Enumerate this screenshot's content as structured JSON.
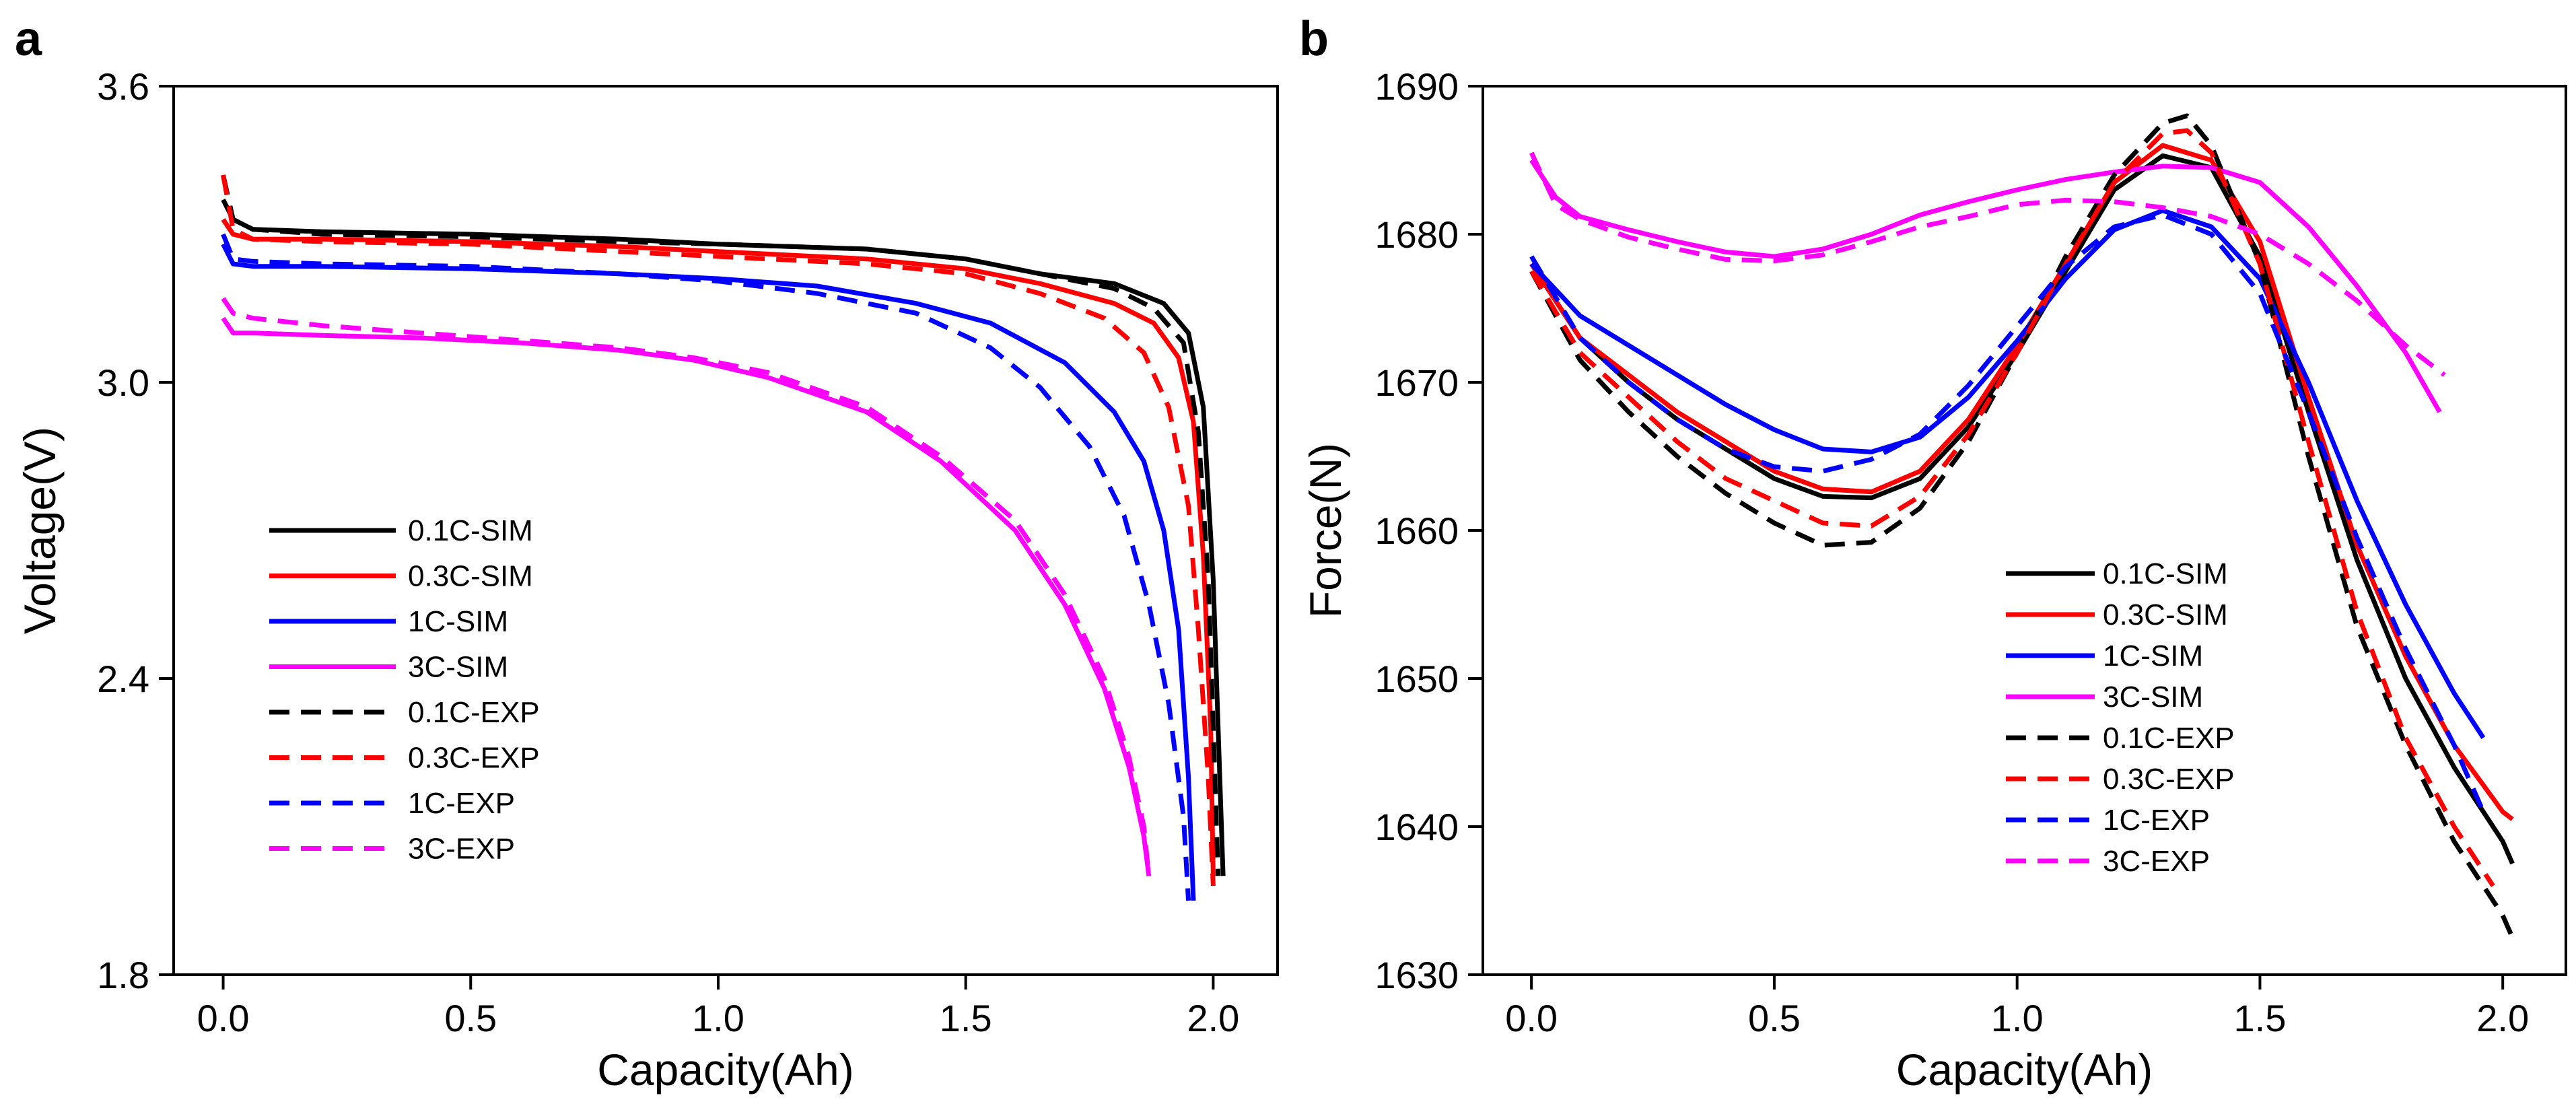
{
  "chart_data": [
    {
      "type": "line",
      "panel": "a",
      "xlabel": "Capacity(Ah)",
      "ylabel": "Voltage(V)",
      "xlim": [
        -0.1,
        2.13
      ],
      "ylim": [
        1.8,
        3.6
      ],
      "xticks": [
        0.0,
        0.5,
        1.0,
        1.5,
        2.0
      ],
      "xtick_labels": [
        "0.0",
        "0.5",
        "1.0",
        "1.5",
        "2.0"
      ],
      "yticks": [
        1.8,
        2.4,
        3.0,
        3.6
      ],
      "ytick_labels": [
        "1.8",
        "2.4",
        "3.0",
        "3.6"
      ],
      "legend_position": "lower-left",
      "series": [
        {
          "name": "0.1C-SIM",
          "color": "#000000",
          "style": "solid",
          "x": [
            0.0,
            0.02,
            0.06,
            0.2,
            0.5,
            0.8,
            1.0,
            1.3,
            1.5,
            1.65,
            1.8,
            1.9,
            1.95,
            1.98,
            2.0,
            2.01,
            2.02
          ],
          "y": [
            3.37,
            3.33,
            3.31,
            3.305,
            3.3,
            3.29,
            3.28,
            3.27,
            3.25,
            3.22,
            3.2,
            3.16,
            3.1,
            2.95,
            2.6,
            2.3,
            2.0
          ]
        },
        {
          "name": "0.3C-SIM",
          "color": "#ff0000",
          "style": "solid",
          "x": [
            0.0,
            0.02,
            0.06,
            0.2,
            0.5,
            0.8,
            1.0,
            1.3,
            1.5,
            1.65,
            1.8,
            1.88,
            1.93,
            1.96,
            1.98,
            1.995,
            2.0
          ],
          "y": [
            3.33,
            3.3,
            3.29,
            3.29,
            3.285,
            3.275,
            3.265,
            3.25,
            3.23,
            3.2,
            3.16,
            3.12,
            3.05,
            2.92,
            2.65,
            2.3,
            2.0
          ]
        },
        {
          "name": "1C-SIM",
          "color": "#0000ff",
          "style": "solid",
          "x": [
            0.0,
            0.02,
            0.06,
            0.2,
            0.5,
            0.8,
            1.0,
            1.2,
            1.4,
            1.55,
            1.7,
            1.8,
            1.86,
            1.9,
            1.93,
            1.95,
            1.96
          ],
          "y": [
            3.28,
            3.24,
            3.235,
            3.235,
            3.23,
            3.22,
            3.21,
            3.195,
            3.16,
            3.12,
            3.04,
            2.94,
            2.84,
            2.7,
            2.5,
            2.2,
            1.95
          ]
        },
        {
          "name": "3C-SIM",
          "color": "#ff00ff",
          "style": "solid",
          "x": [
            0.0,
            0.02,
            0.06,
            0.2,
            0.4,
            0.6,
            0.8,
            0.95,
            1.1,
            1.3,
            1.45,
            1.6,
            1.7,
            1.78,
            1.83,
            1.86,
            1.87
          ],
          "y": [
            3.13,
            3.1,
            3.1,
            3.095,
            3.09,
            3.08,
            3.065,
            3.045,
            3.01,
            2.94,
            2.84,
            2.7,
            2.55,
            2.38,
            2.22,
            2.08,
            2.0
          ]
        },
        {
          "name": "0.1C-EXP",
          "color": "#000000",
          "style": "dashed",
          "x": [
            0.0,
            0.02,
            0.06,
            0.2,
            0.5,
            0.8,
            1.0,
            1.3,
            1.5,
            1.65,
            1.8,
            1.88,
            1.94,
            1.97,
            1.99,
            2.0,
            2.01
          ],
          "y": [
            3.42,
            3.33,
            3.31,
            3.3,
            3.295,
            3.285,
            3.28,
            3.27,
            3.25,
            3.22,
            3.19,
            3.15,
            3.08,
            2.9,
            2.6,
            2.3,
            2.0
          ]
        },
        {
          "name": "0.3C-EXP",
          "color": "#ff0000",
          "style": "dashed",
          "x": [
            0.0,
            0.02,
            0.06,
            0.2,
            0.5,
            0.8,
            1.0,
            1.3,
            1.5,
            1.65,
            1.78,
            1.86,
            1.91,
            1.95,
            1.97,
            1.99,
            2.0
          ],
          "y": [
            3.42,
            3.31,
            3.29,
            3.285,
            3.28,
            3.265,
            3.255,
            3.24,
            3.22,
            3.18,
            3.13,
            3.06,
            2.95,
            2.75,
            2.5,
            2.2,
            1.98
          ]
        },
        {
          "name": "1C-EXP",
          "color": "#0000ff",
          "style": "dashed",
          "x": [
            0.0,
            0.02,
            0.06,
            0.2,
            0.5,
            0.8,
            1.0,
            1.2,
            1.4,
            1.55,
            1.65,
            1.75,
            1.82,
            1.87,
            1.91,
            1.94,
            1.95
          ],
          "y": [
            3.3,
            3.25,
            3.245,
            3.24,
            3.235,
            3.22,
            3.205,
            3.18,
            3.14,
            3.07,
            2.99,
            2.87,
            2.73,
            2.55,
            2.35,
            2.12,
            1.95
          ]
        },
        {
          "name": "3C-EXP",
          "color": "#ff00ff",
          "style": "dashed",
          "x": [
            0.0,
            0.02,
            0.06,
            0.2,
            0.4,
            0.6,
            0.8,
            0.95,
            1.1,
            1.3,
            1.45,
            1.6,
            1.7,
            1.78,
            1.83,
            1.86,
            1.87
          ],
          "y": [
            3.17,
            3.14,
            3.13,
            3.115,
            3.1,
            3.085,
            3.07,
            3.05,
            3.02,
            2.95,
            2.85,
            2.72,
            2.57,
            2.4,
            2.24,
            2.1,
            2.0
          ]
        }
      ]
    },
    {
      "type": "line",
      "panel": "b",
      "xlabel": "Capacity(Ah)",
      "ylabel": "Force(N)",
      "xlim": [
        -0.1,
        2.13
      ],
      "ylim": [
        1630,
        1690
      ],
      "xticks": [
        0.0,
        0.5,
        1.0,
        1.5,
        2.0
      ],
      "xtick_labels": [
        "0.0",
        "0.5",
        "1.0",
        "1.5",
        "2.0"
      ],
      "yticks": [
        1630,
        1640,
        1650,
        1660,
        1670,
        1680,
        1690
      ],
      "ytick_labels": [
        "1630",
        "1640",
        "1650",
        "1660",
        "1670",
        "1680",
        "1690"
      ],
      "legend_position": "lower-right",
      "series": [
        {
          "name": "0.1C-SIM",
          "color": "#000000",
          "style": "solid",
          "x": [
            0.0,
            0.1,
            0.2,
            0.3,
            0.4,
            0.5,
            0.6,
            0.7,
            0.8,
            0.9,
            1.0,
            1.1,
            1.2,
            1.3,
            1.4,
            1.5,
            1.6,
            1.7,
            1.8,
            1.9,
            2.0,
            2.02
          ],
          "y": [
            1678,
            1673,
            1670,
            1667.5,
            1665.5,
            1663.5,
            1662.3,
            1662.2,
            1663.5,
            1667,
            1672,
            1677.5,
            1683,
            1685.3,
            1684.5,
            1678.5,
            1668,
            1658,
            1650,
            1644,
            1639,
            1637.5
          ]
        },
        {
          "name": "0.3C-SIM",
          "color": "#ff0000",
          "style": "solid",
          "x": [
            0.0,
            0.1,
            0.2,
            0.3,
            0.4,
            0.5,
            0.6,
            0.7,
            0.8,
            0.9,
            1.0,
            1.1,
            1.2,
            1.3,
            1.4,
            1.5,
            1.6,
            1.7,
            1.8,
            1.9,
            2.0,
            2.02
          ],
          "y": [
            1678,
            1673,
            1670.5,
            1668,
            1666,
            1664,
            1662.8,
            1662.6,
            1664,
            1667.5,
            1672.5,
            1678,
            1683.5,
            1686,
            1685,
            1679.5,
            1669,
            1659,
            1651.5,
            1645.5,
            1641,
            1640.5
          ]
        },
        {
          "name": "1C-SIM",
          "color": "#0000ff",
          "style": "solid",
          "x": [
            0.0,
            0.1,
            0.2,
            0.3,
            0.4,
            0.5,
            0.6,
            0.7,
            0.8,
            0.9,
            1.0,
            1.1,
            1.2,
            1.3,
            1.4,
            1.5,
            1.6,
            1.7,
            1.8,
            1.9,
            1.96
          ],
          "y": [
            1678,
            1674.5,
            1672.5,
            1670.5,
            1668.5,
            1666.8,
            1665.5,
            1665.3,
            1666.3,
            1669,
            1672.8,
            1677,
            1680.3,
            1681.6,
            1680.5,
            1677,
            1670,
            1662,
            1655,
            1649,
            1646
          ]
        },
        {
          "name": "3C-SIM",
          "color": "#ff00ff",
          "style": "solid",
          "x": [
            0.0,
            0.05,
            0.1,
            0.2,
            0.3,
            0.4,
            0.5,
            0.6,
            0.7,
            0.8,
            0.9,
            1.0,
            1.1,
            1.2,
            1.3,
            1.4,
            1.5,
            1.6,
            1.7,
            1.8,
            1.87
          ],
          "y": [
            1685,
            1682.5,
            1681.2,
            1680.3,
            1679.5,
            1678.8,
            1678.5,
            1679,
            1680,
            1681.3,
            1682.2,
            1683,
            1683.7,
            1684.2,
            1684.6,
            1684.5,
            1683.5,
            1680.5,
            1676.5,
            1672,
            1668
          ]
        },
        {
          "name": "0.1C-EXP",
          "color": "#000000",
          "style": "dashed",
          "x": [
            0.0,
            0.1,
            0.2,
            0.3,
            0.4,
            0.5,
            0.6,
            0.7,
            0.8,
            0.9,
            1.0,
            1.1,
            1.2,
            1.3,
            1.35,
            1.4,
            1.5,
            1.6,
            1.7,
            1.8,
            1.9,
            2.0,
            2.02
          ],
          "y": [
            1677.5,
            1671.5,
            1668,
            1665,
            1662.5,
            1660.5,
            1659,
            1659.2,
            1661.5,
            1666,
            1672,
            1678.5,
            1684,
            1687.5,
            1688,
            1686,
            1678,
            1665,
            1653.5,
            1645.5,
            1639,
            1634,
            1632.5
          ]
        },
        {
          "name": "0.3C-EXP",
          "color": "#ff0000",
          "style": "dashed",
          "x": [
            0.0,
            0.1,
            0.2,
            0.3,
            0.4,
            0.5,
            0.6,
            0.7,
            0.8,
            0.9,
            1.0,
            1.1,
            1.2,
            1.3,
            1.35,
            1.4,
            1.5,
            1.6,
            1.7,
            1.8,
            1.9,
            1.98
          ],
          "y": [
            1677.5,
            1672,
            1669,
            1666,
            1663.5,
            1662,
            1660.5,
            1660.3,
            1662.3,
            1666.5,
            1672,
            1678,
            1683.5,
            1686.8,
            1687,
            1685.5,
            1678,
            1666,
            1654.5,
            1646,
            1640,
            1636
          ]
        },
        {
          "name": "1C-EXP",
          "color": "#0000ff",
          "style": "dashed",
          "x": [
            0.0,
            0.1,
            0.2,
            0.3,
            0.4,
            0.5,
            0.6,
            0.7,
            0.8,
            0.9,
            1.0,
            1.1,
            1.2,
            1.3,
            1.4,
            1.5,
            1.6,
            1.7,
            1.8,
            1.9,
            1.96
          ],
          "y": [
            1678.5,
            1673,
            1670,
            1667.5,
            1665.5,
            1664.3,
            1664,
            1664.8,
            1666.5,
            1669.8,
            1673.8,
            1677.8,
            1680.5,
            1681.3,
            1680,
            1676,
            1668,
            1659.5,
            1652,
            1645.5,
            1641
          ]
        },
        {
          "name": "3C-EXP",
          "color": "#ff00ff",
          "style": "dashed",
          "x": [
            0.0,
            0.05,
            0.1,
            0.2,
            0.3,
            0.4,
            0.5,
            0.6,
            0.7,
            0.8,
            0.9,
            1.0,
            1.1,
            1.2,
            1.3,
            1.4,
            1.5,
            1.6,
            1.7,
            1.8,
            1.88
          ],
          "y": [
            1685.5,
            1682,
            1681,
            1679.8,
            1679,
            1678.3,
            1678.2,
            1678.6,
            1679.5,
            1680.5,
            1681.2,
            1682,
            1682.3,
            1682.2,
            1681.8,
            1681.2,
            1680,
            1678,
            1675.5,
            1672.5,
            1670.5
          ]
        }
      ]
    }
  ]
}
